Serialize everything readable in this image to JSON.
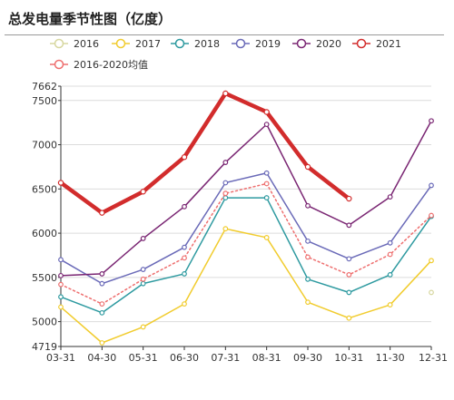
{
  "title": "总发电量季节性图（亿度）",
  "chart_data": {
    "type": "line",
    "categories": [
      "03-31",
      "04-30",
      "05-31",
      "06-30",
      "07-31",
      "08-31",
      "09-30",
      "10-31",
      "11-30",
      "12-31"
    ],
    "ylim": [
      4719,
      7662
    ],
    "yticks": [
      4719,
      5000,
      5500,
      6000,
      6500,
      7000,
      7500,
      7662
    ],
    "grid": true,
    "legend_position": "top",
    "series": [
      {
        "name": "2016",
        "color": "#d7d7a0",
        "values": [
          null,
          null,
          null,
          null,
          null,
          null,
          null,
          null,
          null,
          5330
        ],
        "style": "solid",
        "width": 1.5
      },
      {
        "name": "2017",
        "color": "#f1cc2e",
        "values": [
          5165,
          4760,
          4940,
          5200,
          6050,
          5950,
          5220,
          5040,
          5190,
          5690
        ],
        "style": "solid",
        "width": 1.5
      },
      {
        "name": "2018",
        "color": "#2e9aa0",
        "values": [
          5280,
          5100,
          5430,
          5540,
          6400,
          6400,
          5480,
          5330,
          5530,
          6190
        ],
        "style": "solid",
        "width": 1.5
      },
      {
        "name": "2019",
        "color": "#6a6ab8",
        "values": [
          5700,
          5430,
          5590,
          5840,
          6570,
          6680,
          5910,
          5710,
          5890,
          6540
        ],
        "style": "solid",
        "width": 1.5
      },
      {
        "name": "2020",
        "color": "#7a2673",
        "values": [
          5520,
          5540,
          5940,
          6300,
          6800,
          7230,
          6310,
          6090,
          6410,
          7270
        ],
        "style": "solid",
        "width": 1.5
      },
      {
        "name": "2021",
        "color": "#d22c2c",
        "values": [
          6570,
          6230,
          6470,
          6860,
          7580,
          7370,
          6750,
          6390,
          null,
          null
        ],
        "style": "solid",
        "width": 4.5
      },
      {
        "name": "2016-2020均值",
        "color": "#ee6f6f",
        "values": [
          5420,
          5200,
          5480,
          5720,
          6450,
          6560,
          5730,
          5530,
          5760,
          6200
        ],
        "style": "dotted",
        "width": 1.5
      }
    ]
  }
}
